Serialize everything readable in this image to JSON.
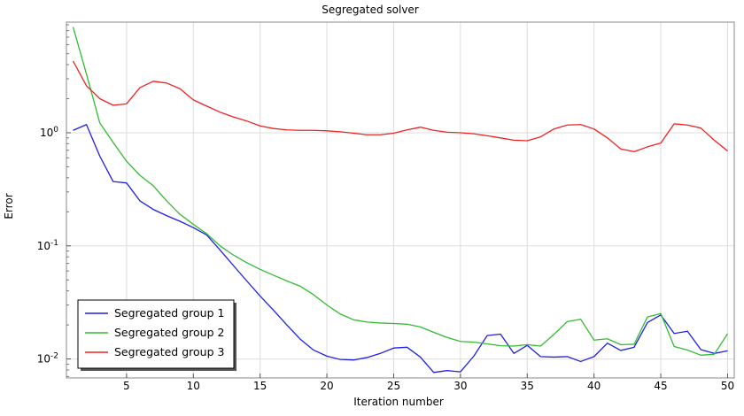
{
  "chart_data": {
    "type": "line",
    "title": "Segregated solver",
    "xlabel": "Iteration number",
    "ylabel": "Error",
    "y_scale": "log",
    "xlim": [
      0.5,
      50.5
    ],
    "ylim": [
      0.0068,
      9.5
    ],
    "grid": true,
    "legend_position": "bottom-left",
    "x_ticks": [
      5,
      10,
      15,
      20,
      25,
      30,
      35,
      40,
      45,
      50
    ],
    "y_ticks": [
      {
        "value": 1,
        "base": "10",
        "exp": "0"
      },
      {
        "value": 0.1,
        "base": "10",
        "exp": "-1"
      },
      {
        "value": 0.01,
        "base": "10",
        "exp": "-2"
      }
    ],
    "x": [
      1,
      2,
      3,
      4,
      5,
      6,
      7,
      8,
      9,
      10,
      11,
      12,
      13,
      14,
      15,
      16,
      17,
      18,
      19,
      20,
      21,
      22,
      23,
      24,
      25,
      26,
      27,
      28,
      29,
      30,
      31,
      32,
      33,
      34,
      35,
      36,
      37,
      38,
      39,
      40,
      41,
      42,
      43,
      44,
      45,
      46,
      47,
      48,
      49,
      50
    ],
    "series": [
      {
        "name": "Segregated group 1",
        "color": "#1f1fe8",
        "values": [
          1.05,
          1.18,
          0.62,
          0.37,
          0.36,
          0.25,
          0.21,
          0.185,
          0.165,
          0.145,
          0.125,
          0.092,
          0.067,
          0.049,
          0.036,
          0.027,
          0.02,
          0.015,
          0.012,
          0.0106,
          0.0099,
          0.0098,
          0.0103,
          0.0112,
          0.0125,
          0.0127,
          0.0104,
          0.0076,
          0.0079,
          0.0077,
          0.0106,
          0.0161,
          0.0166,
          0.0112,
          0.0132,
          0.0105,
          0.0104,
          0.0105,
          0.0095,
          0.0105,
          0.0138,
          0.0119,
          0.0127,
          0.021,
          0.0245,
          0.0168,
          0.0176,
          0.0121,
          0.0112,
          0.0118
        ]
      },
      {
        "name": "Segregated group 2",
        "color": "#33bb33",
        "values": [
          8.6,
          3.3,
          1.22,
          0.82,
          0.56,
          0.42,
          0.34,
          0.25,
          0.19,
          0.155,
          0.128,
          0.1,
          0.083,
          0.071,
          0.062,
          0.055,
          0.049,
          0.044,
          0.037,
          0.03,
          0.025,
          0.0222,
          0.0212,
          0.0208,
          0.0206,
          0.0203,
          0.0192,
          0.0172,
          0.0155,
          0.0143,
          0.0141,
          0.0136,
          0.0131,
          0.013,
          0.0134,
          0.013,
          0.0165,
          0.0214,
          0.0225,
          0.0147,
          0.0151,
          0.0134,
          0.0135,
          0.0235,
          0.0252,
          0.0129,
          0.012,
          0.0108,
          0.011,
          0.0167
        ]
      },
      {
        "name": "Segregated group 3",
        "color": "#ee2222",
        "values": [
          4.3,
          2.6,
          2.0,
          1.75,
          1.8,
          2.5,
          2.85,
          2.75,
          2.45,
          1.95,
          1.72,
          1.52,
          1.38,
          1.27,
          1.15,
          1.09,
          1.06,
          1.05,
          1.05,
          1.04,
          1.02,
          0.99,
          0.96,
          0.96,
          0.99,
          1.06,
          1.12,
          1.05,
          1.01,
          1.0,
          0.98,
          0.94,
          0.9,
          0.86,
          0.85,
          0.92,
          1.08,
          1.17,
          1.18,
          1.08,
          0.9,
          0.72,
          0.68,
          0.75,
          0.81,
          1.2,
          1.17,
          1.1,
          0.86,
          0.69
        ]
      }
    ]
  }
}
